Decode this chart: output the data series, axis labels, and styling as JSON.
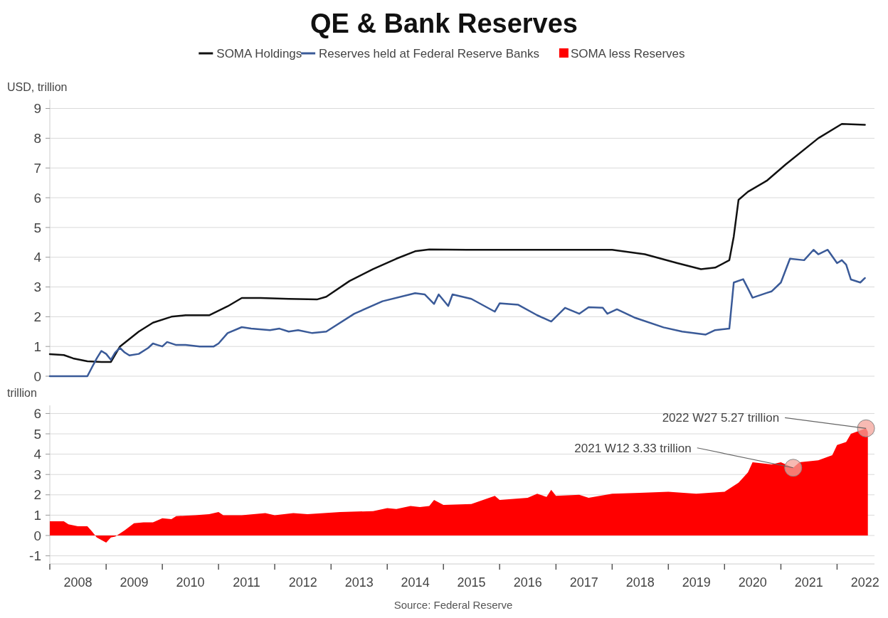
{
  "chart_data": [
    {
      "type": "line",
      "title": "QE & Bank Reserves",
      "ylabel": "USD, trillion",
      "legend": "top",
      "grid": "y",
      "tick_labels": "y",
      "xlim": [
        "2008-01-01",
        "2022-09-01"
      ],
      "ylim": [
        0,
        9.3
      ],
      "yticks": [
        0,
        1,
        2,
        3,
        4,
        5,
        6,
        7,
        8,
        9
      ],
      "series": [
        {
          "name": "SOMA Holdings",
          "color": "#111111",
          "x": [
            "2008-01",
            "2008-04",
            "2008-06",
            "2008-09",
            "2008-12",
            "2009-02",
            "2009-04",
            "2009-08",
            "2009-11",
            "2010-03",
            "2010-06",
            "2010-11",
            "2011-03",
            "2011-06",
            "2011-10",
            "2012-04",
            "2012-10",
            "2012-12",
            "2013-05",
            "2013-10",
            "2014-03",
            "2014-07",
            "2014-10",
            "2015-06",
            "2016-06",
            "2017-06",
            "2018-01",
            "2018-08",
            "2019-03",
            "2019-08",
            "2019-11",
            "2020-02",
            "2020-03",
            "2020-04",
            "2020-06",
            "2020-10",
            "2021-02",
            "2021-09",
            "2022-02",
            "2022-07"
          ],
          "values": [
            0.74,
            0.71,
            0.6,
            0.5,
            0.48,
            0.48,
            1.0,
            1.5,
            1.8,
            2.0,
            2.05,
            2.05,
            2.35,
            2.63,
            2.63,
            2.6,
            2.58,
            2.67,
            3.2,
            3.6,
            3.95,
            4.2,
            4.26,
            4.25,
            4.25,
            4.25,
            4.25,
            4.1,
            3.8,
            3.6,
            3.65,
            3.9,
            4.7,
            5.93,
            6.2,
            6.57,
            7.12,
            8.0,
            8.48,
            8.45
          ]
        },
        {
          "name": "Reserves held at Federal Reserve Banks",
          "color": "#3a5a98",
          "x": [
            "2008-01",
            "2008-09",
            "2008-10",
            "2008-11",
            "2008-12",
            "2009-01",
            "2009-02",
            "2009-03",
            "2009-04",
            "2009-05",
            "2009-06",
            "2009-08",
            "2009-10",
            "2009-11",
            "2009-12",
            "2010-01",
            "2010-02",
            "2010-04",
            "2010-06",
            "2010-09",
            "2010-12",
            "2011-01",
            "2011-03",
            "2011-06",
            "2011-08",
            "2011-12",
            "2012-02",
            "2012-04",
            "2012-06",
            "2012-09",
            "2012-12",
            "2013-06",
            "2013-12",
            "2014-07",
            "2014-09",
            "2014-11",
            "2014-12",
            "2015-02",
            "2015-03",
            "2015-07",
            "2015-12",
            "2016-01",
            "2016-05",
            "2016-09",
            "2016-12",
            "2017-03",
            "2017-06",
            "2017-08",
            "2017-11",
            "2017-12",
            "2018-02",
            "2018-06",
            "2018-12",
            "2019-04",
            "2019-09",
            "2019-11",
            "2020-02",
            "2020-03",
            "2020-05",
            "2020-06",
            "2020-07",
            "2020-10",
            "2020-11",
            "2021-01",
            "2021-03",
            "2021-06",
            "2021-08",
            "2021-09",
            "2021-11",
            "2022-01",
            "2022-02",
            "2022-03",
            "2022-04",
            "2022-06",
            "2022-07"
          ],
          "values": [
            0,
            0,
            0.3,
            0.6,
            0.85,
            0.75,
            0.55,
            0.8,
            0.95,
            0.8,
            0.7,
            0.75,
            0.95,
            1.1,
            1.05,
            1.0,
            1.15,
            1.05,
            1.05,
            1.0,
            1.0,
            1.1,
            1.45,
            1.65,
            1.6,
            1.55,
            1.6,
            1.5,
            1.55,
            1.45,
            1.5,
            2.1,
            2.52,
            2.79,
            2.75,
            2.43,
            2.75,
            2.36,
            2.75,
            2.6,
            2.17,
            2.45,
            2.4,
            2.05,
            1.84,
            2.3,
            2.1,
            2.32,
            2.3,
            2.1,
            2.25,
            1.96,
            1.64,
            1.5,
            1.4,
            1.55,
            1.6,
            3.15,
            3.26,
            2.95,
            2.64,
            2.8,
            2.85,
            3.15,
            3.95,
            3.9,
            4.25,
            4.1,
            4.25,
            3.8,
            3.9,
            3.75,
            3.25,
            3.15,
            3.3
          ]
        }
      ]
    },
    {
      "type": "area",
      "ylabel": "trillion",
      "legend": "top",
      "grid": "y",
      "xlim": [
        "2008-01-01",
        "2022-09-01"
      ],
      "ylim": [
        -1.4,
        6.4
      ],
      "yticks": [
        -1,
        0,
        1,
        2,
        3,
        4,
        5,
        6
      ],
      "xticks": [
        {
          "value": "2008-01-01",
          "label": null
        },
        {
          "value": "2008-07-02",
          "label": "2008"
        },
        {
          "value": "2009-01-01",
          "label": null
        },
        {
          "value": "2009-07-02",
          "label": "2009"
        },
        {
          "value": "2010-01-01",
          "label": null
        },
        {
          "value": "2010-07-02",
          "label": "2010"
        },
        {
          "value": "2011-01-01",
          "label": null
        },
        {
          "value": "2011-07-02",
          "label": "2011"
        },
        {
          "value": "2012-01-01",
          "label": null
        },
        {
          "value": "2012-07-02",
          "label": "2012"
        },
        {
          "value": "2013-01-01",
          "label": null
        },
        {
          "value": "2013-07-02",
          "label": "2013"
        },
        {
          "value": "2014-01-01",
          "label": null
        },
        {
          "value": "2014-07-02",
          "label": "2014"
        },
        {
          "value": "2015-01-01",
          "label": null
        },
        {
          "value": "2015-07-02",
          "label": "2015"
        },
        {
          "value": "2016-01-01",
          "label": null
        },
        {
          "value": "2016-07-02",
          "label": "2016"
        },
        {
          "value": "2017-01-01",
          "label": null
        },
        {
          "value": "2017-07-02",
          "label": "2017"
        },
        {
          "value": "2018-01-01",
          "label": null
        },
        {
          "value": "2018-07-02",
          "label": "2018"
        },
        {
          "value": "2019-01-01",
          "label": null
        },
        {
          "value": "2019-07-02",
          "label": "2019"
        },
        {
          "value": "2020-01-01",
          "label": null
        },
        {
          "value": "2020-07-02",
          "label": "2020"
        },
        {
          "value": "2021-01-01",
          "label": null
        },
        {
          "value": "2021-07-02",
          "label": "2021"
        },
        {
          "value": "2022-01-01",
          "label": null
        },
        {
          "value": "2022-07-02",
          "label": "2022"
        }
      ],
      "series": [
        {
          "name": "SOMA less Reserves",
          "color": "#ff0000",
          "x": [
            "2008-01",
            "2008-04",
            "2008-05",
            "2008-07",
            "2008-09",
            "2008-10",
            "2008-11",
            "2009-01",
            "2009-02",
            "2009-03",
            "2009-05",
            "2009-07",
            "2009-09",
            "2009-11",
            "2010-01",
            "2010-03",
            "2010-04",
            "2010-08",
            "2010-11",
            "2011-01",
            "2011-02",
            "2011-06",
            "2011-11",
            "2012-01",
            "2012-05",
            "2012-08",
            "2013-03",
            "2013-10",
            "2014-01",
            "2014-03",
            "2014-06",
            "2014-08",
            "2014-10",
            "2014-11",
            "2015-01",
            "2015-07",
            "2015-12",
            "2016-01",
            "2016-07",
            "2016-09",
            "2016-11",
            "2016-12",
            "2017-01",
            "2017-06",
            "2017-08",
            "2018-01",
            "2018-07",
            "2019-01",
            "2019-07",
            "2020-01",
            "2020-04",
            "2020-06",
            "2020-07",
            "2020-11",
            "2021-01",
            "2021-03-22",
            "2021-05",
            "2021-09",
            "2021-12",
            "2022-01",
            "2022-03",
            "2022-04",
            "2022-07-08",
            "2022-07-20"
          ],
          "values": [
            0.7,
            0.7,
            0.55,
            0.45,
            0.45,
            0.2,
            -0.1,
            -0.35,
            -0.1,
            -0.05,
            0.25,
            0.6,
            0.65,
            0.65,
            0.85,
            0.8,
            0.95,
            1.0,
            1.05,
            1.15,
            1.0,
            1.0,
            1.1,
            1.0,
            1.1,
            1.05,
            1.15,
            1.2,
            1.35,
            1.3,
            1.45,
            1.4,
            1.45,
            1.75,
            1.5,
            1.55,
            1.95,
            1.75,
            1.85,
            2.05,
            1.9,
            2.25,
            1.95,
            2.0,
            1.85,
            2.05,
            2.1,
            2.15,
            2.05,
            2.15,
            2.6,
            3.1,
            3.6,
            3.5,
            3.6,
            3.33,
            3.6,
            3.7,
            3.95,
            4.45,
            4.6,
            5.0,
            5.27,
            5.1
          ]
        }
      ],
      "annotations": [
        {
          "text": "2022 W27 5.27 trillion",
          "x": "2022-07-08",
          "y": 5.27
        },
        {
          "text": "2021 W12 3.33 trillion",
          "x": "2021-03-22",
          "y": 3.33
        },
        "Source: Federal Reserve"
      ]
    }
  ]
}
